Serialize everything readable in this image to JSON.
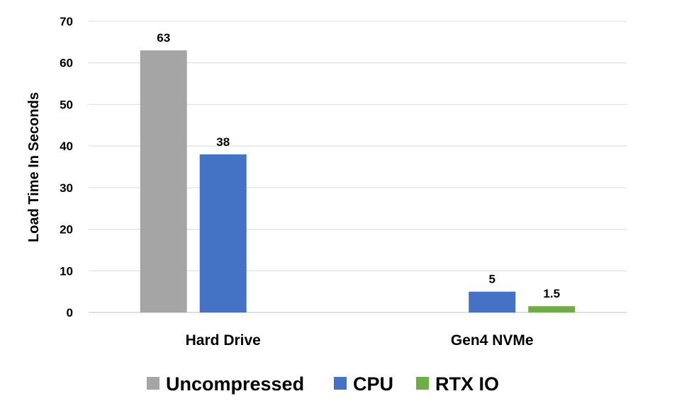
{
  "chart_data": {
    "type": "bar",
    "title": "",
    "xlabel": "",
    "ylabel": "Load Time In Seconds",
    "ylim": [
      0,
      70
    ],
    "yticks": [
      0,
      10,
      20,
      30,
      40,
      50,
      60,
      70
    ],
    "grid": true,
    "legend_position": "bottom",
    "categories": [
      "Hard Drive",
      "Gen4 NVMe"
    ],
    "series": [
      {
        "name": "Uncompressed",
        "color": "#a5a5a5",
        "values": [
          63,
          null
        ],
        "labels": [
          "63",
          ""
        ]
      },
      {
        "name": "CPU",
        "color": "#4472c4",
        "values": [
          38,
          5
        ],
        "labels": [
          "38",
          "5"
        ]
      },
      {
        "name": "RTX IO",
        "color": "#70ad47",
        "values": [
          null,
          1.5
        ],
        "labels": [
          "",
          "1.5"
        ]
      }
    ]
  }
}
